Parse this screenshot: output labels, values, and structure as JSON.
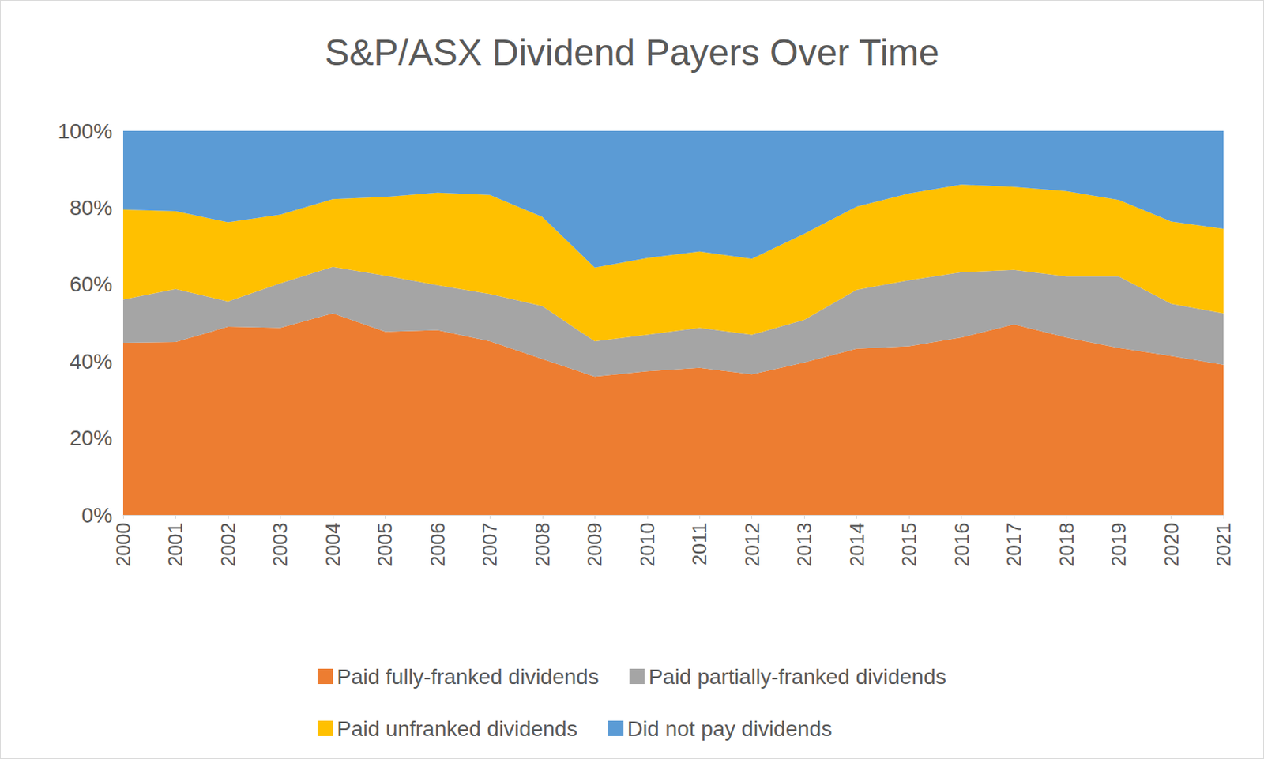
{
  "chart_data": {
    "type": "area",
    "title": "S&P/ASX Dividend Payers Over Time",
    "stacked": true,
    "grid": true,
    "legend": "bottom",
    "categories": [
      "2000",
      "2001",
      "2002",
      "2003",
      "2004",
      "2005",
      "2006",
      "2007",
      "2008",
      "2009",
      "2010",
      "2011",
      "2012",
      "2013",
      "2014",
      "2015",
      "2016",
      "2017",
      "2018",
      "2019",
      "2020",
      "2021"
    ],
    "ylim": [
      0,
      100
    ],
    "yticks": [
      {
        "value": 0,
        "label": "0%"
      },
      {
        "value": 20,
        "label": "20%"
      },
      {
        "value": 40,
        "label": "40%"
      },
      {
        "value": 60,
        "label": "60%"
      },
      {
        "value": 80,
        "label": "80%"
      },
      {
        "value": 100,
        "label": "100%"
      }
    ],
    "series": [
      {
        "name": "Paid fully-franked dividends",
        "color": "#ED7D31",
        "values": [
          44.8,
          45.0,
          49.0,
          48.7,
          52.5,
          47.7,
          48.1,
          45.2,
          40.6,
          36.0,
          37.4,
          38.3,
          36.6,
          39.7,
          43.3,
          43.9,
          46.2,
          49.6,
          46.2,
          43.5,
          41.4,
          39.1
        ]
      },
      {
        "name": "Paid partially-franked dividends",
        "color": "#A5A5A5",
        "values": [
          11.3,
          13.8,
          6.6,
          11.6,
          12.1,
          14.6,
          11.7,
          12.3,
          13.8,
          9.2,
          9.5,
          10.4,
          10.3,
          11.1,
          15.3,
          17.2,
          17.0,
          14.2,
          15.9,
          18.6,
          13.6,
          13.4
        ]
      },
      {
        "name": "Paid unfranked dividends",
        "color": "#FFC000",
        "values": [
          23.4,
          20.3,
          20.6,
          17.9,
          17.6,
          20.5,
          24.1,
          25.8,
          23.2,
          19.2,
          20.0,
          19.9,
          19.8,
          22.4,
          21.7,
          22.6,
          22.8,
          21.6,
          22.2,
          19.9,
          21.4,
          22.0
        ]
      },
      {
        "name": "Did not pay dividends",
        "color": "#5B9BD5",
        "values": [
          20.5,
          20.9,
          23.8,
          21.8,
          17.8,
          17.2,
          16.1,
          16.7,
          22.4,
          35.6,
          33.1,
          31.4,
          33.3,
          26.8,
          19.7,
          16.3,
          14.0,
          14.6,
          15.7,
          18.0,
          23.6,
          25.5
        ]
      }
    ]
  }
}
